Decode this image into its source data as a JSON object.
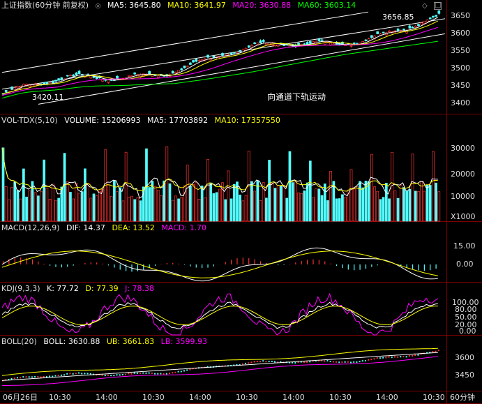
{
  "price_panel": {
    "title": "上证指数(60分钟 前复权)",
    "ma5": "MA5: 3645.80",
    "ma10": "MA10: 3641.97",
    "ma20": "MA20: 3630.88",
    "ma60": "MA60: 3603.14",
    "y_ticks": [
      "3650",
      "3600",
      "3550",
      "3500",
      "3450",
      "3400"
    ],
    "low_label": "3420.11",
    "high_label": "3656.85",
    "annotation": "向通道下轨运动"
  },
  "volume_panel": {
    "title": "VOL-TDX(5,10)",
    "volume": "VOLUME: 15206993",
    "ma5": "MA5: 17703892",
    "ma10": "MA10: 17357550",
    "y_ticks": [
      "30000",
      "20000",
      "10000",
      "X1000"
    ]
  },
  "macd_panel": {
    "title": "MACD(12,26,9)",
    "dif": "DIF: 14.37",
    "dea": "DEA: 13.52",
    "macd": "MACD: 1.70",
    "y_ticks": [
      "15.00",
      "0.00"
    ]
  },
  "kdj_panel": {
    "title": "KDJ(9,3,3)",
    "k": "K: 77.72",
    "d": "D: 77.39",
    "j": "J: 78.38",
    "y_ticks": [
      "100.00",
      "80.00",
      "50.00",
      "20.00",
      "0.00"
    ]
  },
  "boll_panel": {
    "title": "BOLL(20)",
    "boll": "BOLL: 3630.88",
    "ub": "UB: 3661.83",
    "lb": "LB: 3599.93",
    "y_ticks": [
      "3600",
      "3450"
    ]
  },
  "time_axis": {
    "labels": [
      "06月26日",
      "10:30",
      "14:00",
      "10:30",
      "14:00",
      "10:30",
      "14:00",
      "10:30",
      "14:00",
      "10:30"
    ],
    "period": "60分钟"
  },
  "colors": {
    "up": "#ff3232",
    "down": "#54ffff",
    "ma5": "#ffffff",
    "ma10": "#ffff00",
    "ma20": "#ff00ff",
    "ma60": "#00ff00",
    "frame": "#7a0000"
  }
}
